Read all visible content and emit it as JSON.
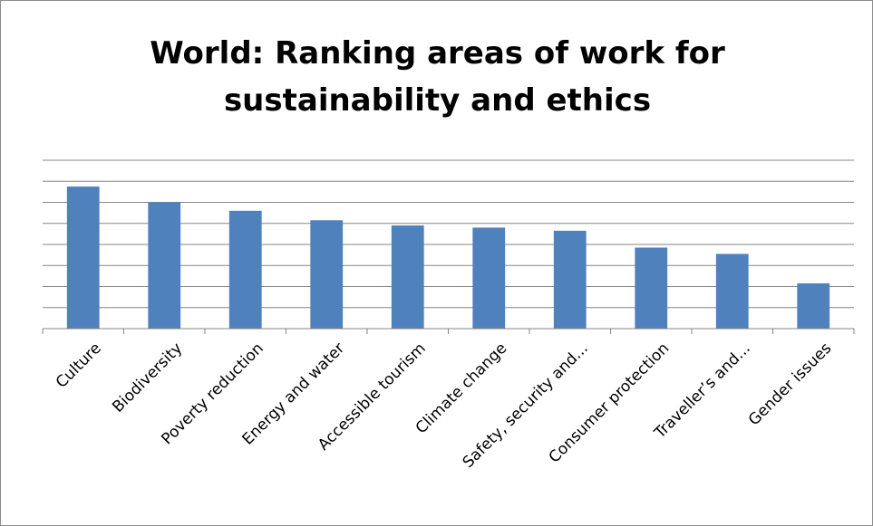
{
  "chart_data": {
    "type": "bar",
    "title_lines": [
      "World: Ranking areas of work for",
      "sustainability and ethics"
    ],
    "categories": [
      "Culture",
      "Biodiversity",
      "Poverty reduction",
      "Energy and water",
      "Accessible tourism",
      "Climate change",
      "Safety, security and...",
      "Consumer protection",
      "Traveller’s and...",
      "Gender issues"
    ],
    "values": [
      6.75,
      6.0,
      5.6,
      5.15,
      4.9,
      4.8,
      4.65,
      3.85,
      3.55,
      2.15
    ],
    "ylim": [
      0,
      8
    ],
    "grid": true,
    "legend": "none",
    "bar_color": "#4F81BD",
    "gridline_color": "#868686"
  }
}
